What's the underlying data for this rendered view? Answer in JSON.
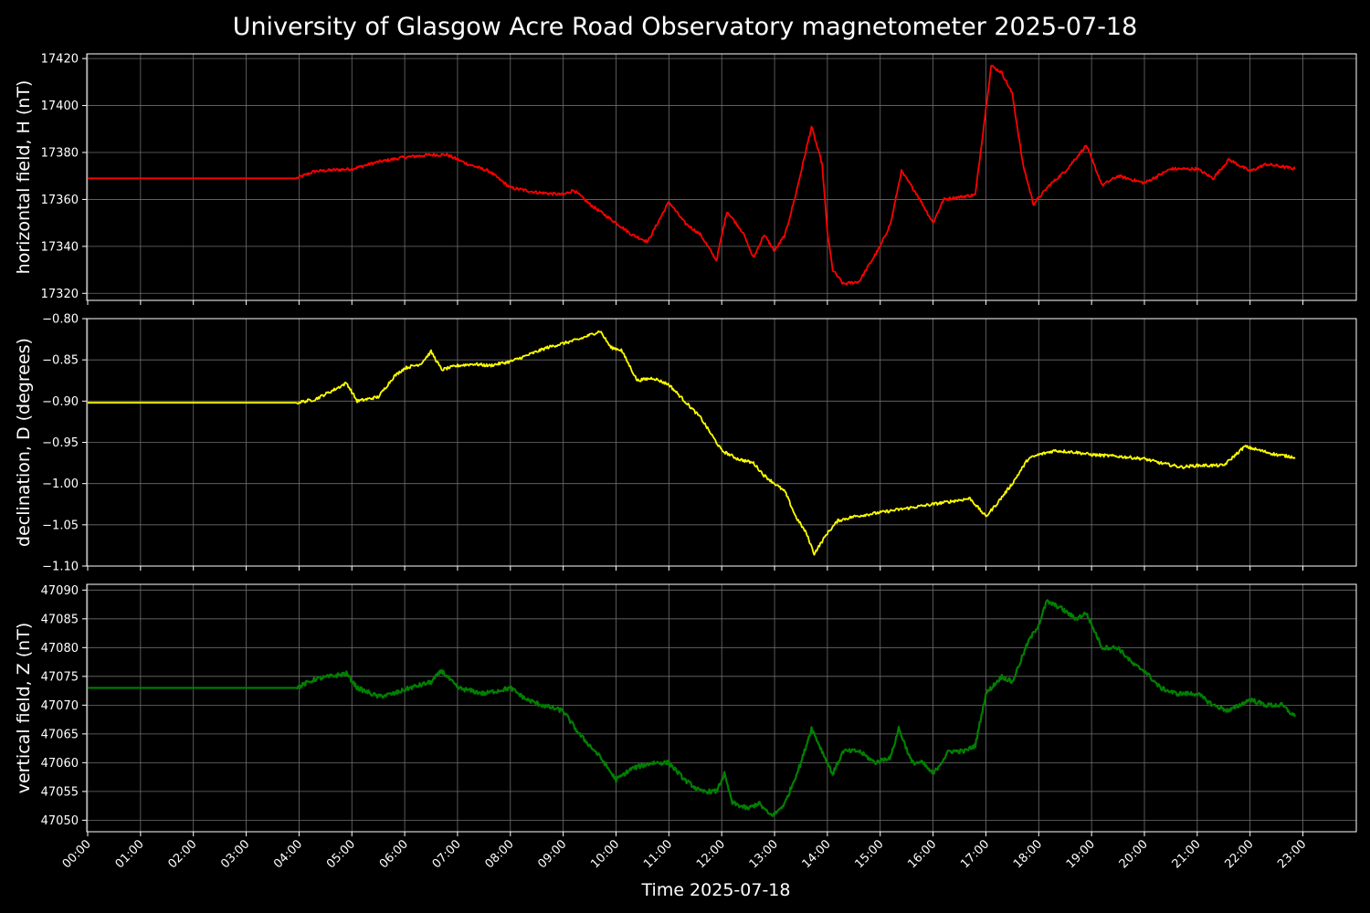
{
  "chart_data": {
    "title": "University of Glasgow Acre Road Observatory magnetometer 2025-07-18",
    "xlabel": "Time 2025-07-18",
    "x_ticks": [
      "00:00",
      "01:00",
      "02:00",
      "03:00",
      "04:00",
      "05:00",
      "06:00",
      "07:00",
      "08:00",
      "09:00",
      "10:00",
      "11:00",
      "12:00",
      "13:00",
      "14:00",
      "15:00",
      "16:00",
      "17:00",
      "18:00",
      "19:00",
      "20:00",
      "21:00",
      "22:00",
      "23:00"
    ],
    "xlim": [
      0,
      24
    ],
    "grid": true,
    "panels": [
      {
        "type": "line",
        "ylabel": "horizontal field, H (nT)",
        "color": "#ff0000",
        "ylim": [
          17317,
          17422
        ],
        "y_ticks": [
          17320,
          17340,
          17360,
          17380,
          17400,
          17420
        ],
        "y_tick_labels": [
          "17320",
          "17340",
          "17360",
          "17380",
          "17400",
          "17420"
        ],
        "x": [
          0,
          3.95,
          4.3,
          5.0,
          5.5,
          6.0,
          6.5,
          6.8,
          7.2,
          7.6,
          8.0,
          8.5,
          9.0,
          9.2,
          9.5,
          10.0,
          10.3,
          10.6,
          11.0,
          11.3,
          11.6,
          11.9,
          12.1,
          12.4,
          12.6,
          12.8,
          13.0,
          13.2,
          13.4,
          13.7,
          13.9,
          14.0,
          14.1,
          14.3,
          14.6,
          15.0,
          15.2,
          15.4,
          15.7,
          16.0,
          16.2,
          16.5,
          16.8,
          17.1,
          17.3,
          17.5,
          17.7,
          17.9,
          18.2,
          18.5,
          18.9,
          19.2,
          19.5,
          20.0,
          20.5,
          21.0,
          21.3,
          21.6,
          22.0,
          22.3,
          22.6,
          22.85
        ],
        "y": [
          17369,
          17369,
          17372,
          17373,
          17376,
          17378,
          17379,
          17379,
          17375,
          17372,
          17365,
          17363,
          17362,
          17364,
          17358,
          17350,
          17345,
          17342,
          17359,
          17350,
          17345,
          17334,
          17355,
          17346,
          17335,
          17345,
          17338,
          17345,
          17362,
          17391,
          17375,
          17346,
          17330,
          17324,
          17325,
          17340,
          17350,
          17372,
          17362,
          17350,
          17360,
          17361,
          17362,
          17417,
          17414,
          17405,
          17375,
          17358,
          17366,
          17372,
          17383,
          17366,
          17370,
          17367,
          17373,
          17373,
          17369,
          17377,
          17372,
          17375,
          17374,
          17373
        ]
      },
      {
        "type": "line",
        "ylabel": "declination, D (degrees)",
        "color": "#ffff00",
        "ylim": [
          -1.1,
          -0.8
        ],
        "y_ticks": [
          -1.1,
          -1.05,
          -1.0,
          -0.95,
          -0.9,
          -0.85,
          -0.8
        ],
        "y_tick_labels": [
          "−1.10",
          "−1.05",
          "−1.00",
          "−0.95",
          "−0.90",
          "−0.85",
          "−0.80"
        ],
        "x": [
          0,
          3.95,
          4.3,
          4.7,
          4.9,
          5.1,
          5.5,
          5.8,
          6.0,
          6.3,
          6.5,
          6.7,
          7.0,
          7.3,
          7.6,
          8.0,
          8.3,
          8.7,
          9.0,
          9.3,
          9.7,
          9.9,
          10.1,
          10.4,
          10.7,
          11.0,
          11.3,
          11.6,
          11.8,
          12.0,
          12.3,
          12.6,
          12.8,
          13.0,
          13.2,
          13.4,
          13.6,
          13.75,
          14.0,
          14.2,
          14.5,
          15.0,
          15.5,
          16.0,
          16.3,
          16.7,
          17.0,
          17.2,
          17.5,
          17.8,
          18.0,
          18.3,
          18.7,
          19.0,
          19.5,
          20.0,
          20.3,
          20.7,
          21.0,
          21.5,
          21.9,
          22.2,
          22.5,
          22.85
        ],
        "y": [
          -0.902,
          -0.902,
          -0.898,
          -0.885,
          -0.878,
          -0.9,
          -0.895,
          -0.87,
          -0.86,
          -0.855,
          -0.84,
          -0.862,
          -0.857,
          -0.855,
          -0.857,
          -0.852,
          -0.845,
          -0.835,
          -0.83,
          -0.825,
          -0.815,
          -0.835,
          -0.838,
          -0.875,
          -0.872,
          -0.88,
          -0.9,
          -0.92,
          -0.94,
          -0.96,
          -0.97,
          -0.975,
          -0.99,
          -1.0,
          -1.01,
          -1.04,
          -1.06,
          -1.085,
          -1.06,
          -1.045,
          -1.04,
          -1.035,
          -1.03,
          -1.025,
          -1.022,
          -1.018,
          -1.04,
          -1.025,
          -1.0,
          -0.97,
          -0.965,
          -0.96,
          -0.962,
          -0.965,
          -0.967,
          -0.97,
          -0.975,
          -0.98,
          -0.978,
          -0.978,
          -0.955,
          -0.96,
          -0.965,
          -0.968
        ]
      },
      {
        "type": "line",
        "ylabel": "vertical field, Z (nT)",
        "color": "#008000",
        "ylim": [
          47048,
          47091
        ],
        "y_ticks": [
          47050,
          47055,
          47060,
          47065,
          47070,
          47075,
          47080,
          47085,
          47090
        ],
        "y_tick_labels": [
          "47050",
          "47055",
          "47060",
          "47065",
          "47070",
          "47075",
          "47080",
          "47085",
          "47090"
        ],
        "x": [
          0,
          3.95,
          4.3,
          4.6,
          4.9,
          5.1,
          5.5,
          5.8,
          6.1,
          6.5,
          6.7,
          7.0,
          7.5,
          8.0,
          8.3,
          8.6,
          9.0,
          9.3,
          9.7,
          10.0,
          10.3,
          10.7,
          11.0,
          11.3,
          11.6,
          11.9,
          12.05,
          12.2,
          12.5,
          12.7,
          12.9,
          13.0,
          13.2,
          13.5,
          13.7,
          13.9,
          14.1,
          14.3,
          14.6,
          14.9,
          15.2,
          15.35,
          15.6,
          15.8,
          16.0,
          16.3,
          16.6,
          16.8,
          17.0,
          17.3,
          17.5,
          17.8,
          18.0,
          18.15,
          18.4,
          18.7,
          18.9,
          19.2,
          19.5,
          19.8,
          20.0,
          20.3,
          20.6,
          21.0,
          21.3,
          21.6,
          22.0,
          22.3,
          22.6,
          22.85
        ],
        "y": [
          47073,
          47073,
          47074.5,
          47075,
          47075.5,
          47073,
          47071.5,
          47072,
          47073,
          47074,
          47076,
          47073,
          47072,
          47073,
          47071,
          47070,
          47069,
          47065,
          47061,
          47057,
          47059,
          47060,
          47060,
          47057,
          47055,
          47055,
          47058,
          47053,
          47052,
          47053,
          47051,
          47051,
          47053,
          47060,
          47066,
          47062,
          47058,
          47062,
          47062,
          47060,
          47061,
          47066,
          47060,
          47060,
          47058,
          47062,
          47062,
          47063,
          47072,
          47075,
          47074,
          47081,
          47084,
          47088,
          47087,
          47085,
          47086,
          47080,
          47080,
          47077,
          47076,
          47073,
          47072,
          47072,
          47070,
          47069,
          47071,
          47070,
          47070,
          47068
        ]
      }
    ]
  }
}
